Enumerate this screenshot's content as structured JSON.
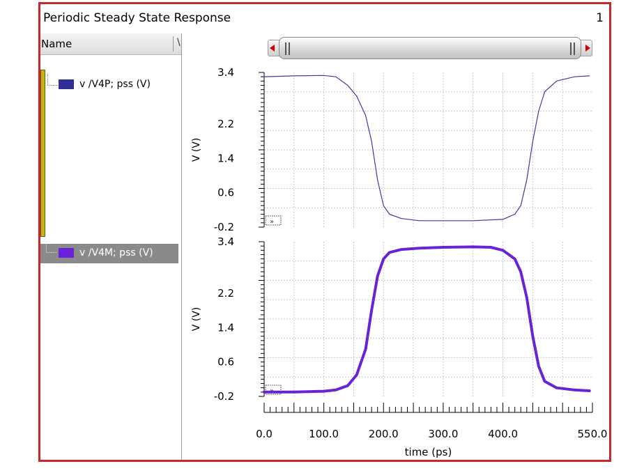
{
  "window": {
    "title": "Periodic Steady State Response",
    "number": "1"
  },
  "panel": {
    "header": "Name",
    "header_cut": "\\",
    "items": [
      {
        "label": "v /V4P; pss (V)",
        "color": "#2e2e93",
        "selected": false
      },
      {
        "label": "v /V4M; pss (V)",
        "color": "#6a22d6",
        "selected": true
      }
    ]
  },
  "chart_data": [
    {
      "type": "line",
      "title": "",
      "xlabel": "",
      "ylabel": "V (V)",
      "ylim": [
        -0.2,
        3.4
      ],
      "xlim": [
        0,
        550
      ],
      "y_ticks": [
        "3.4",
        "2.2",
        "1.4",
        "0.6",
        "-0.2"
      ],
      "y_tick_values": [
        3.4,
        2.2,
        1.4,
        0.6,
        -0.2
      ],
      "grid": true,
      "series": [
        {
          "name": "v /V4P; pss (V)",
          "color": "#3a3aa8",
          "x": [
            0,
            50,
            100,
            120,
            140,
            155,
            170,
            180,
            190,
            200,
            210,
            230,
            260,
            300,
            350,
            400,
            420,
            430,
            440,
            450,
            460,
            470,
            490,
            520,
            545
          ],
          "y": [
            3.3,
            3.32,
            3.33,
            3.3,
            3.1,
            2.85,
            2.4,
            1.8,
            0.9,
            0.3,
            0.1,
            0.0,
            -0.05,
            -0.05,
            -0.05,
            -0.02,
            0.1,
            0.3,
            0.9,
            1.8,
            2.5,
            2.95,
            3.2,
            3.3,
            3.32
          ]
        }
      ]
    },
    {
      "type": "line",
      "title": "",
      "xlabel": "time (ps)",
      "ylabel": "V (V)",
      "ylim": [
        -0.2,
        3.4
      ],
      "xlim": [
        0,
        550
      ],
      "y_ticks": [
        "3.4",
        "2.2",
        "1.4",
        "0.6",
        "-0.2"
      ],
      "y_tick_values": [
        3.4,
        2.2,
        1.4,
        0.6,
        -0.2
      ],
      "x_ticks": [
        "0.0",
        "100.0",
        "200.0",
        "300.0",
        "400.0",
        "550.0"
      ],
      "x_tick_values": [
        0,
        100,
        200,
        300,
        400,
        550
      ],
      "grid": true,
      "series": [
        {
          "name": "v /V4M; pss (V)",
          "color": "#6a22d6",
          "x": [
            0,
            50,
            100,
            120,
            140,
            155,
            170,
            180,
            190,
            200,
            210,
            230,
            260,
            300,
            350,
            380,
            400,
            420,
            430,
            440,
            450,
            460,
            470,
            490,
            520,
            545
          ],
          "y": [
            -0.1,
            -0.1,
            -0.08,
            -0.05,
            0.05,
            0.3,
            0.9,
            1.8,
            2.6,
            3.0,
            3.15,
            3.22,
            3.25,
            3.27,
            3.28,
            3.27,
            3.2,
            3.0,
            2.7,
            2.1,
            1.2,
            0.5,
            0.15,
            0.0,
            -0.05,
            -0.07
          ]
        }
      ]
    }
  ]
}
